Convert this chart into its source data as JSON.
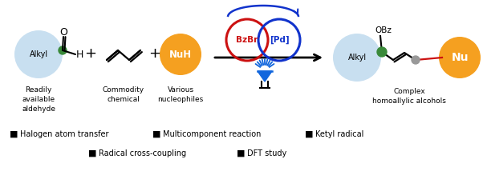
{
  "bg_color": "#ffffff",
  "light_blue": "#c8dff0",
  "orange": "#f5a020",
  "green": "#3a8a3a",
  "gray": "#999999",
  "red_circle": "#cc1111",
  "blue_circle": "#1133cc",
  "blue_led": "#1166dd",
  "red_bond": "#cc1111",
  "blue_bond": "#1133cc",
  "figw": 6.02,
  "figh": 2.34,
  "dpi": 100,
  "legend_row1": [
    "Halogen atom transfer",
    "Multicomponent reaction",
    "Ketyl radical"
  ],
  "legend_row2": [
    "Radical cross-coupling",
    "DFT study"
  ]
}
